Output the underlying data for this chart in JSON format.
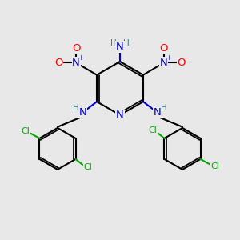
{
  "background_color": "#e8e8e8",
  "bond_color": "#000000",
  "n_color": "#0000cc",
  "o_color": "#ff0000",
  "cl_color": "#00aa00",
  "h_color": "#3d7a7a",
  "figsize": [
    3.0,
    3.0
  ],
  "dpi": 100,
  "xlim": [
    0,
    12
  ],
  "ylim": [
    0,
    12
  ]
}
